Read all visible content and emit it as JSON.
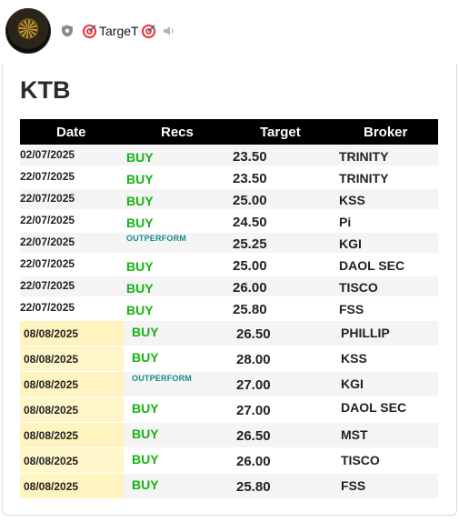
{
  "header": {
    "channel_name": "TargeT",
    "icons": [
      "avatar",
      "shield-icon",
      "target-icon",
      "speaker-icon"
    ]
  },
  "card": {
    "title": "KTB",
    "columns": [
      "Date",
      "Recs",
      "Target",
      "Broker"
    ],
    "rows_a": [
      {
        "date": "02/07/2025",
        "rec": "BUY",
        "target": "23.50",
        "broker": "TRINITY"
      },
      {
        "date": "22/07/2025",
        "rec": "BUY",
        "target": "23.50",
        "broker": "TRINITY"
      },
      {
        "date": "22/07/2025",
        "rec": "BUY",
        "target": "25.00",
        "broker": "KSS"
      },
      {
        "date": "22/07/2025",
        "rec": "BUY",
        "target": "24.50",
        "broker": "Pi"
      },
      {
        "date": "22/07/2025",
        "rec": "OUTPERFORM",
        "target": "25.25",
        "broker": "KGI"
      },
      {
        "date": "22/07/2025",
        "rec": "BUY",
        "target": "25.00",
        "broker": "DAOL SEC"
      },
      {
        "date": "22/07/2025",
        "rec": "BUY",
        "target": "26.00",
        "broker": "TISCO"
      },
      {
        "date": "22/07/2025",
        "rec": "BUY",
        "target": "25.80",
        "broker": "FSS"
      }
    ],
    "rows_b": [
      {
        "date": "08/08/2025",
        "rec": "BUY",
        "target": "26.50",
        "broker": "PHILLIP"
      },
      {
        "date": "08/08/2025",
        "rec": "BUY",
        "target": "28.00",
        "broker": "KSS"
      },
      {
        "date": "08/08/2025",
        "rec": "OUTPERFORM",
        "target": "27.00",
        "broker": "KGI"
      },
      {
        "date": "08/08/2025",
        "rec": "BUY",
        "target": "27.00",
        "broker": "DAOL SEC"
      },
      {
        "date": "08/08/2025",
        "rec": "BUY",
        "target": "26.50",
        "broker": "MST"
      },
      {
        "date": "08/08/2025",
        "rec": "BUY",
        "target": "26.00",
        "broker": "TISCO"
      },
      {
        "date": "08/08/2025",
        "rec": "BUY",
        "target": "25.80",
        "broker": "FSS"
      }
    ]
  },
  "colors": {
    "buy": "#13b413",
    "outperform": "#1a8a8a",
    "header_bg": "#000000",
    "highlight": "#fff7c9"
  }
}
